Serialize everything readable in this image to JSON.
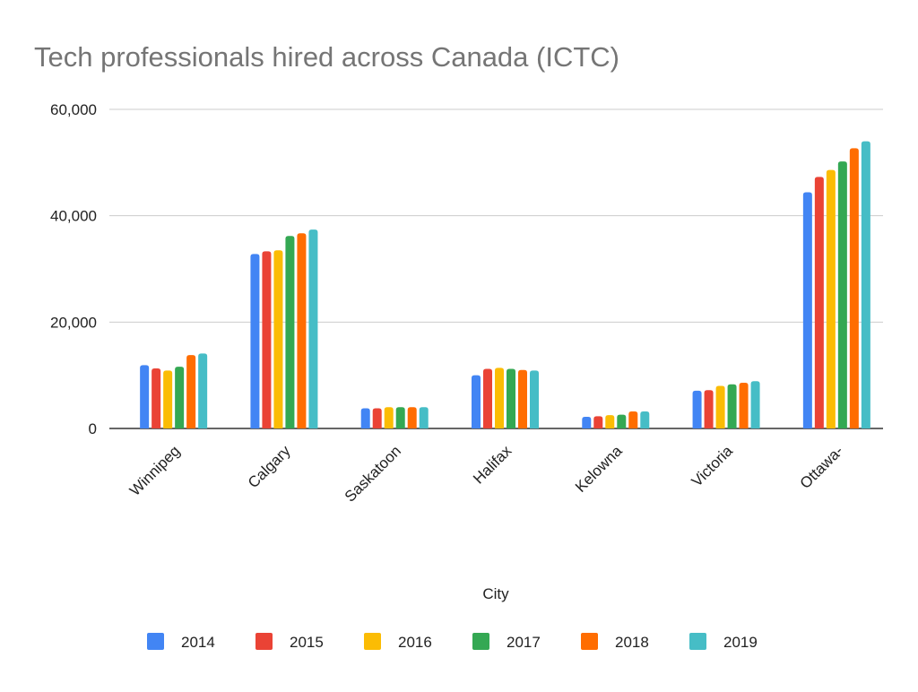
{
  "chart_data": {
    "type": "bar",
    "title": "Tech professionals hired across Canada (ICTC)",
    "xlabel": "City",
    "ylabel": "",
    "ylim": [
      0,
      60000
    ],
    "yticks": [
      0,
      20000,
      40000,
      60000
    ],
    "ytick_labels": [
      "0",
      "20,000",
      "40,000",
      "60,000"
    ],
    "grid": true,
    "legend_position": "bottom",
    "categories": [
      "Winnipeg",
      "Calgary",
      "Saskatoon",
      "Halifax",
      "Kelowna",
      "Victoria",
      "Ottawa-"
    ],
    "series": [
      {
        "name": "2014",
        "color": "#4285F4",
        "values": [
          11900,
          32800,
          3800,
          10000,
          2200,
          7100,
          44400
        ]
      },
      {
        "name": "2015",
        "color": "#EA4335",
        "values": [
          11300,
          33300,
          3800,
          11200,
          2300,
          7200,
          47300
        ]
      },
      {
        "name": "2016",
        "color": "#FBBC04",
        "values": [
          10900,
          33500,
          4000,
          11400,
          2500,
          8000,
          48600
        ]
      },
      {
        "name": "2017",
        "color": "#34A853",
        "values": [
          11600,
          36200,
          4000,
          11200,
          2600,
          8300,
          50200
        ]
      },
      {
        "name": "2018",
        "color": "#FF6D01",
        "values": [
          13800,
          36700,
          4000,
          11000,
          3200,
          8600,
          52700
        ]
      },
      {
        "name": "2019",
        "color": "#46BDC6",
        "values": [
          14100,
          37400,
          4000,
          10900,
          3200,
          8900,
          54000
        ]
      }
    ]
  }
}
